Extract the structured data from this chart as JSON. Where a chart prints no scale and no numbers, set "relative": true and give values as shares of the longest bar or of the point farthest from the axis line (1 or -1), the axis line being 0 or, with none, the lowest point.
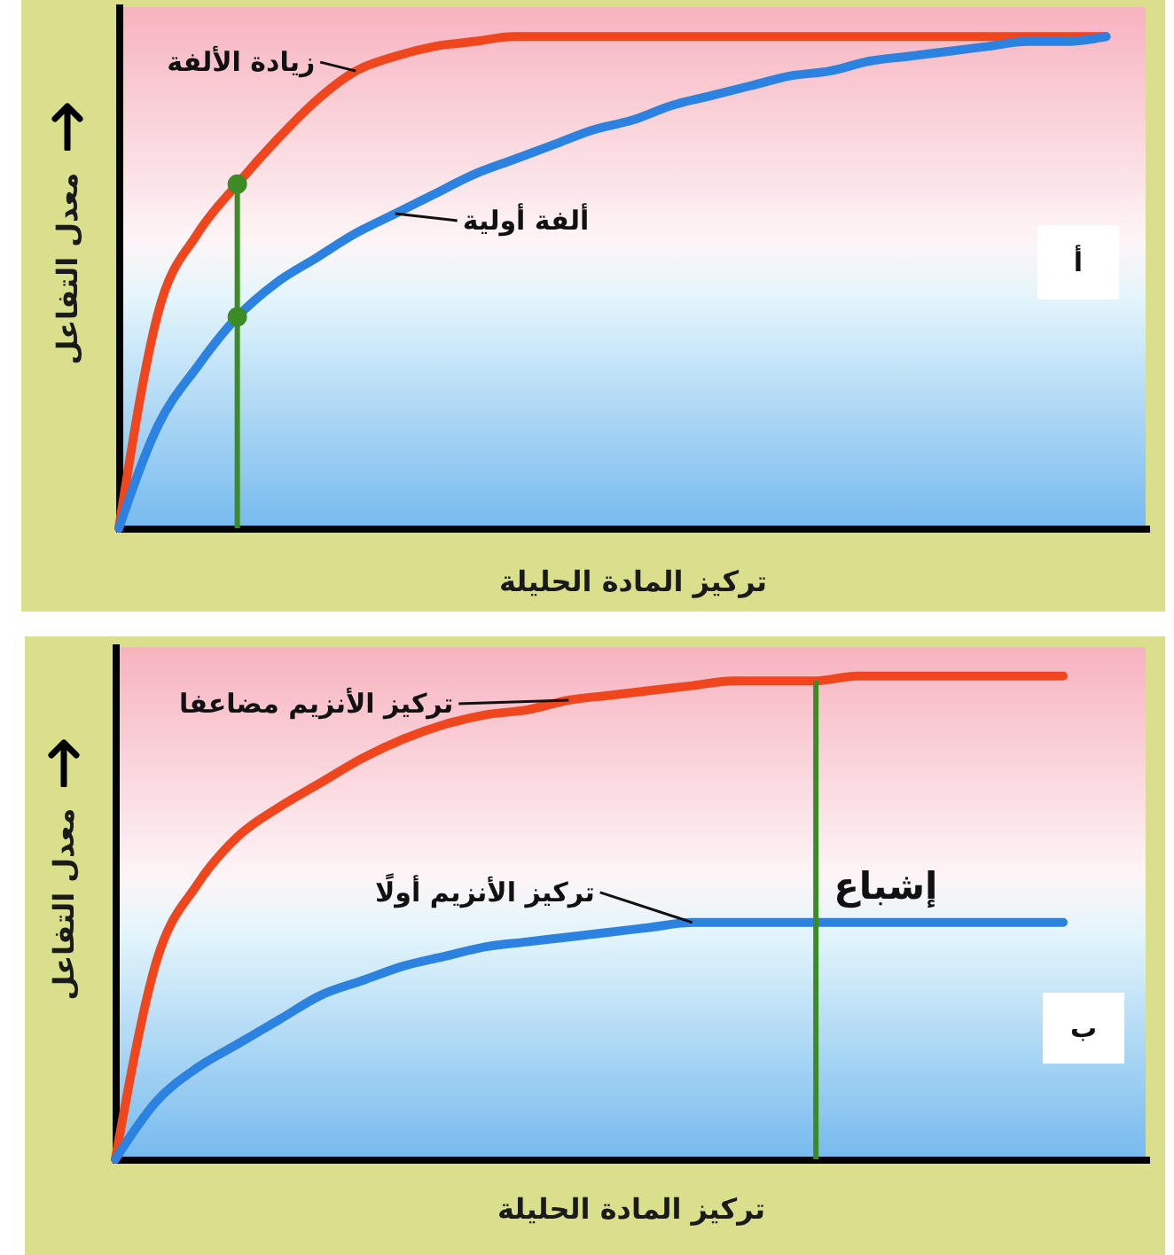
{
  "chart_data": [
    {
      "type": "line",
      "relative": true,
      "xlabel": "تركيز المادة الحليلة",
      "ylabel": "معدل التفاعل",
      "tick_labels": false,
      "categories": [
        null,
        null,
        null,
        null,
        null,
        null,
        null,
        null,
        null,
        null,
        null,
        null,
        null,
        null,
        null,
        null,
        null,
        null,
        null,
        null,
        null,
        null,
        null,
        null,
        null,
        null,
        null
      ],
      "series": [
        {
          "name": "زيادة الألفة",
          "color": "#f0461e",
          "values": [
            0,
            0.44,
            0.6,
            0.7,
            0.79,
            0.87,
            0.93,
            0.96,
            0.98,
            0.99,
            1,
            1,
            1,
            1,
            1,
            1,
            1,
            1,
            1,
            1,
            1,
            1,
            1,
            1,
            1,
            1,
            null
          ]
        },
        {
          "name": "ألفة أولية",
          "color": "#2b82e0",
          "values": [
            0,
            0.21,
            0.33,
            0.43,
            0.5,
            0.55,
            0.6,
            0.64,
            0.68,
            0.72,
            0.75,
            0.78,
            0.81,
            0.83,
            0.86,
            0.88,
            0.9,
            0.92,
            0.93,
            0.95,
            0.96,
            0.97,
            0.98,
            0.99,
            0.99,
            1,
            null
          ]
        }
      ],
      "annotations": [
        "أ"
      ]
    },
    {
      "type": "line",
      "relative": true,
      "xlabel": "تركيز المادة الحليلة",
      "ylabel": "معدل التفاعل",
      "tick_labels": false,
      "categories": [
        null,
        null,
        null,
        null,
        null,
        null,
        null,
        null,
        null,
        null,
        null,
        null,
        null,
        null,
        null,
        null,
        null,
        null,
        null,
        null,
        null,
        null,
        null,
        null,
        null,
        null
      ],
      "series": [
        {
          "name": "تركيز الأنزيم مضاعفا",
          "color": "#f0461e",
          "values": [
            0,
            0.41,
            0.57,
            0.67,
            0.73,
            0.78,
            0.83,
            0.87,
            0.9,
            0.92,
            0.93,
            0.95,
            0.96,
            0.97,
            0.98,
            0.99,
            0.99,
            0.99,
            1,
            1,
            1,
            1,
            1,
            1,
            null,
            null
          ]
        },
        {
          "name": "تركيز الأنزيم أولًا",
          "color": "#2b82e0",
          "values": [
            0,
            0.12,
            0.19,
            0.24,
            0.29,
            0.34,
            0.37,
            0.4,
            0.42,
            0.44,
            0.45,
            0.46,
            0.47,
            0.48,
            0.49,
            0.49,
            0.49,
            0.49,
            0.49,
            0.49,
            0.49,
            0.49,
            0.49,
            0.49,
            null,
            null
          ]
        }
      ],
      "annotations": [
        "إشباع",
        "ب"
      ]
    }
  ]
}
